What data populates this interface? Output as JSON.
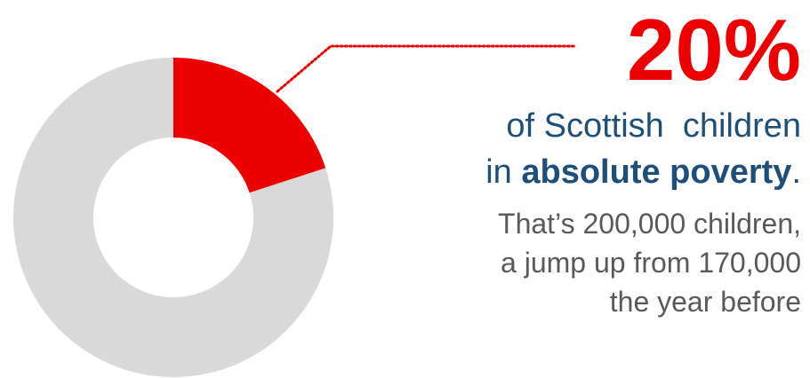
{
  "stat": {
    "value": "20%"
  },
  "headline": {
    "line1": "of Scottish  children",
    "line2_prefix": "in ",
    "line2_bold": "absolute poverty",
    "line2_suffix": "."
  },
  "detail": {
    "line1": "That’s 200,000 children,",
    "line2": "a jump up from 170,000",
    "line3": "the year before"
  },
  "colors": {
    "highlight": "#ee0000",
    "remainder": "#d9d9d9",
    "headline_text": "#1f4e79",
    "detail_text": "#595959",
    "leader_line": "#ee0000"
  },
  "chart_data": {
    "type": "pie",
    "style": "donut",
    "slices": [
      {
        "value": 20,
        "color": "#ee0000"
      },
      {
        "value": 80,
        "color": "#d9d9d9"
      }
    ],
    "start_angle_deg": 0,
    "direction": "clockwise",
    "grid": false,
    "legend": "none"
  }
}
